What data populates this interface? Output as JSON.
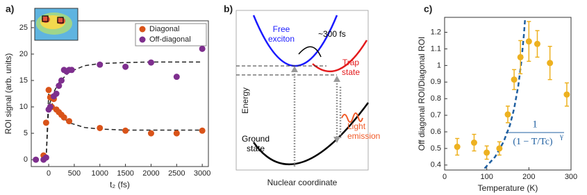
{
  "chart_data": [
    {
      "type": "scatter",
      "panel_label": "a)",
      "xlabel": "t₂ (fs)",
      "ylabel": "ROI signal (arb. units)",
      "xlim": [
        -340,
        3120
      ],
      "ylim": [
        -1.3,
        26.3
      ],
      "xticks": [
        0,
        500,
        1000,
        1500,
        2000,
        2500,
        3000
      ],
      "yticks": [
        0,
        5,
        10,
        15,
        20,
        25
      ],
      "legend": "upper right",
      "series": [
        {
          "name": "Diagonal",
          "color": "#d95319",
          "x": [
            -100,
            -50,
            0,
            30,
            60,
            100,
            150,
            200,
            250,
            300,
            400,
            1000,
            1500,
            2000,
            2500,
            3000
          ],
          "values": [
            0.8,
            7,
            13.2,
            11.8,
            10,
            11.5,
            9.5,
            9,
            8.5,
            8,
            7.3,
            6,
            5.5,
            5,
            5,
            5.5
          ]
        },
        {
          "name": "Off-diagonal",
          "color": "#7e2f8e",
          "x": [
            -250,
            -100,
            -50,
            0,
            30,
            100,
            150,
            200,
            250,
            300,
            350,
            400,
            450,
            1000,
            1500,
            2000,
            2500,
            3000
          ],
          "values": [
            0,
            0,
            0.4,
            9.5,
            10,
            12,
            12.5,
            14,
            15,
            17,
            16.7,
            17,
            17,
            18,
            17.6,
            18.4,
            15.7,
            21
          ]
        }
      ],
      "curves": [
        {
          "x": [
            -50,
            0,
            50,
            100,
            200,
            400,
            700,
            1000,
            1500,
            2000,
            3000
          ],
          "values": [
            0,
            12.5,
            11,
            10,
            8.6,
            7,
            6.1,
            5.8,
            5.6,
            5.6,
            5.6
          ]
        },
        {
          "x": [
            -50,
            0,
            50,
            100,
            200,
            400,
            700,
            1000,
            1500,
            2000,
            3000
          ],
          "values": [
            0,
            10,
            11.5,
            12.8,
            14.6,
            16.6,
            17.8,
            18.2,
            18.4,
            18.5,
            18.5
          ]
        }
      ]
    },
    {
      "type": "diagram",
      "panel_label": "b)",
      "xlabel": "Nuclear coordinate",
      "ylabel": "Energy",
      "annotations": [
        "Free exciton",
        "~300 fs",
        "Trap state",
        "Ground state",
        "Light emission"
      ]
    },
    {
      "type": "scatter",
      "panel_label": "c)",
      "xlabel": "Temperature (K)",
      "ylabel": "Off diagonal ROI/Diagonal ROI",
      "xlim": [
        0,
        300
      ],
      "ylim": [
        0.37,
        1.29
      ],
      "xticks": [
        0,
        100,
        200,
        300
      ],
      "yticks": [
        0.4,
        0.5,
        0.6,
        0.7,
        0.8,
        0.9,
        1,
        1.1,
        1.2
      ],
      "series": [
        {
          "color": "#edb120",
          "x": [
            30,
            70,
            100,
            130,
            150,
            165,
            180,
            200,
            220,
            250,
            290
          ],
          "values": [
            0.51,
            0.535,
            0.475,
            0.5,
            0.705,
            0.915,
            1.05,
            1.145,
            1.13,
            1.015,
            0.825
          ],
          "errors": [
            0.05,
            0.05,
            0.04,
            0.04,
            0.05,
            0.06,
            0.1,
            0.12,
            0.08,
            0.1,
            0.07
          ]
        }
      ],
      "curves": [
        {
          "x": [
            95,
            120,
            140,
            155,
            165,
            175,
            182,
            188,
            191
          ],
          "values": [
            0.38,
            0.45,
            0.54,
            0.64,
            0.74,
            0.88,
            1.02,
            1.18,
            1.28
          ],
          "color": "#1f5fa0"
        }
      ],
      "formula": {
        "numerator": "1",
        "denominator": "(1 − T/Tc)",
        "exponent": "γ"
      }
    }
  ]
}
